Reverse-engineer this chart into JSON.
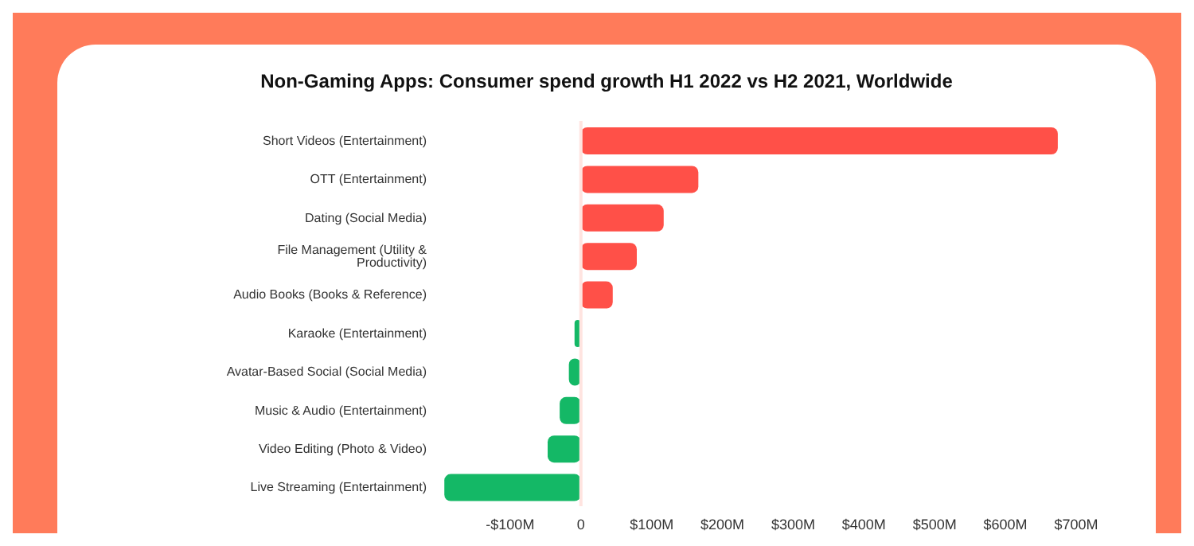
{
  "chart_data": {
    "type": "bar",
    "orientation": "horizontal",
    "title": "Non-Gaming Apps: Consumer spend growth H1 2022 vs H2 2021, Worldwide",
    "categories": [
      "Short Videos (Entertainment)",
      "OTT (Entertainment)",
      "Dating (Social Media)",
      "File Management (Utility & Productivity)",
      "Audio Books (Books & Reference)",
      "Karaoke (Entertainment)",
      "Avatar-Based Social (Social Media)",
      "Music & Audio (Entertainment)",
      "Video Editing (Photo & Video)",
      "Live Streaming (Entertainment)"
    ],
    "values": [
      674,
      166,
      117,
      79,
      45,
      -9,
      -17,
      -30,
      -47,
      -193
    ],
    "colors": [
      "#ff5048",
      "#ff5048",
      "#ff5048",
      "#ff5048",
      "#ff5048",
      "#14b866",
      "#14b866",
      "#14b866",
      "#14b866",
      "#14b866"
    ],
    "xlim": [
      -200,
      700
    ],
    "xticks": [
      {
        "value": -100,
        "label": "-$100M"
      },
      0,
      {
        "value": 100,
        "label": "$100M"
      },
      {
        "value": 200,
        "label": "$200M"
      },
      {
        "value": 300,
        "label": "$300M"
      },
      {
        "value": 400,
        "label": "$400M"
      },
      {
        "value": 500,
        "label": "$500M"
      },
      {
        "value": 600,
        "label": "$600M"
      },
      {
        "value": 700,
        "label": "$700M"
      }
    ],
    "ref_lines": [
      {
        "axis": "x",
        "value": 0,
        "color": "#ffe4e0"
      }
    ],
    "grid": false,
    "legend": false
  }
}
